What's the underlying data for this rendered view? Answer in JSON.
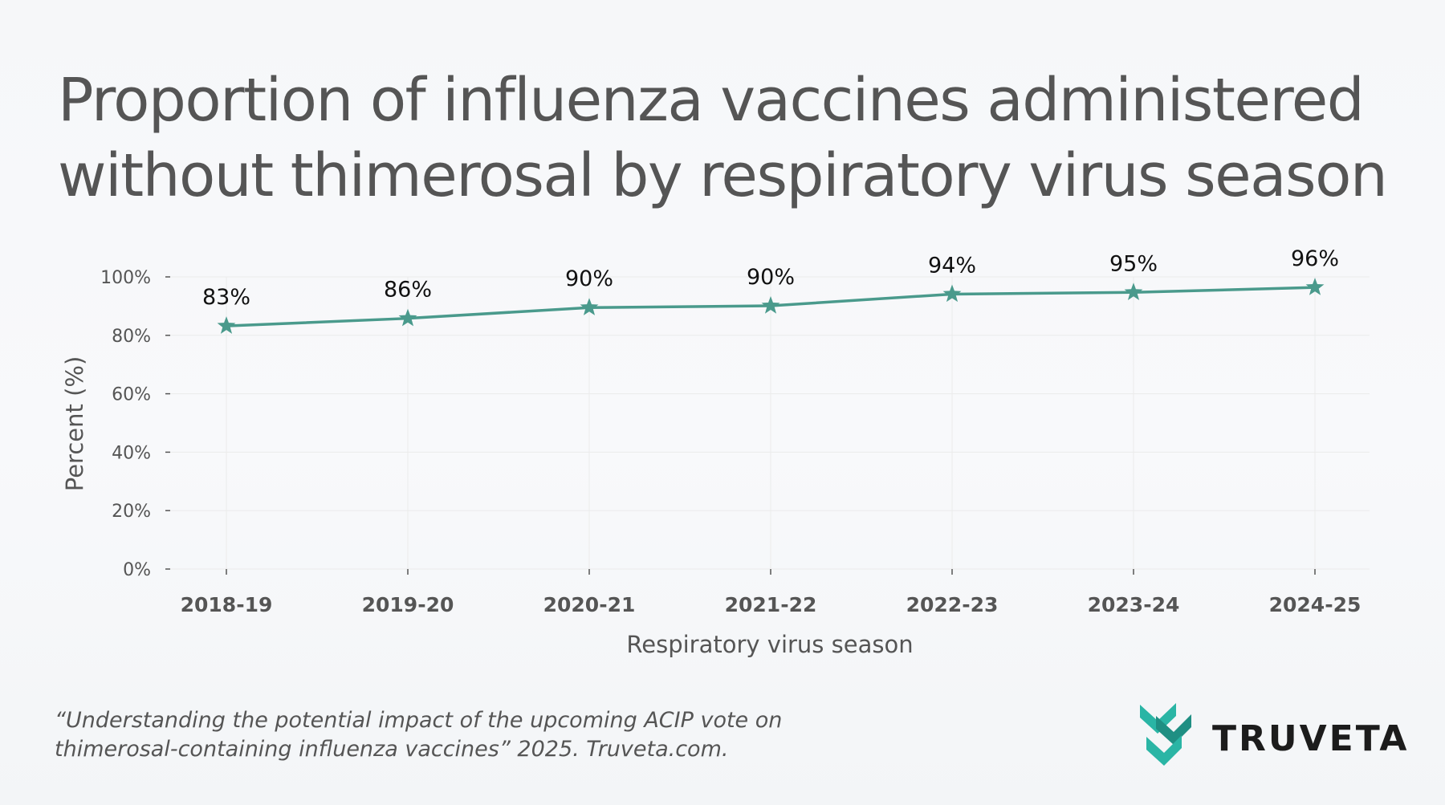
{
  "title": {
    "line1": "Proportion of influenza vaccines administered",
    "line2": "without thimerosal by respiratory virus season"
  },
  "chart_data": {
    "type": "line",
    "categories": [
      "2018-19",
      "2019-20",
      "2020-21",
      "2021-22",
      "2022-23",
      "2023-24",
      "2024-25"
    ],
    "values": [
      83.2,
      85.8,
      89.5,
      90.1,
      94.1,
      94.7,
      96.4
    ],
    "data_labels": [
      "83%",
      "86%",
      "90%",
      "90%",
      "94%",
      "95%",
      "96%"
    ],
    "xlabel": "Respiratory virus season",
    "ylabel": "Percent (%)",
    "ylim": [
      0,
      100
    ],
    "yticks": [
      0,
      20,
      40,
      60,
      80,
      100
    ],
    "ytick_labels": [
      "0%",
      "20%",
      "40%",
      "60%",
      "80%",
      "100%"
    ],
    "marker": "star",
    "grid": true,
    "line_color": "#4a9a8c",
    "label_color": "#111111",
    "tick_color": "#555555"
  },
  "citation": {
    "line1": "“Understanding the potential impact of the upcoming ACIP vote on",
    "line2": "thimerosal-containing  influenza vaccines” 2025. Truveta.com."
  },
  "logo": {
    "wordmark": "TRUVETA",
    "mark_colors": [
      "#2ab5a5",
      "#1f8f83"
    ]
  }
}
